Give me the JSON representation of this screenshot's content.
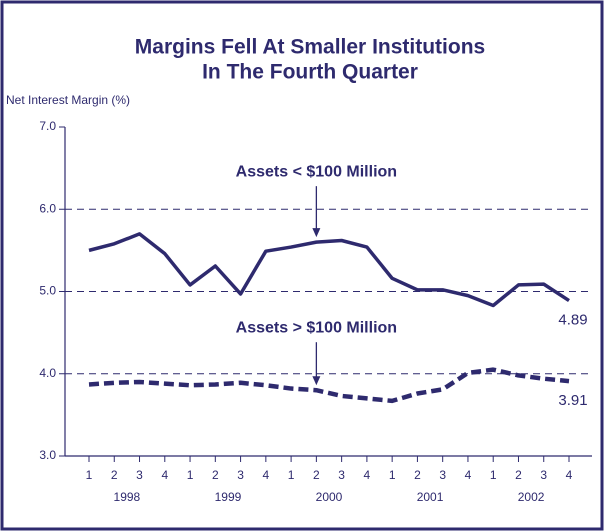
{
  "chart_data": {
    "type": "line",
    "title": [
      "Margins Fell At Smaller Institutions",
      "In The Fourth Quarter"
    ],
    "y_label": "Net Interest Margin (%)",
    "categories": [
      "1",
      "2",
      "3",
      "4",
      "1",
      "2",
      "3",
      "4",
      "1",
      "2",
      "3",
      "4",
      "1",
      "2",
      "3",
      "4",
      "1",
      "2",
      "3",
      "4"
    ],
    "years": [
      "1998",
      "1999",
      "2000",
      "2001",
      "2002"
    ],
    "series": [
      {
        "name": "Assets < $100 Million",
        "color": "#2e2a6e",
        "line_style": "solid",
        "values": [
          5.5,
          5.58,
          5.7,
          5.46,
          5.08,
          5.31,
          4.97,
          5.49,
          5.54,
          5.6,
          5.62,
          5.54,
          5.16,
          5.02,
          5.02,
          4.95,
          4.83,
          5.08,
          5.09,
          4.89
        ]
      },
      {
        "name": "Assets > $100 Million",
        "color": "#2e2a6e",
        "line_style": "dashed",
        "values": [
          3.87,
          3.89,
          3.9,
          3.88,
          3.86,
          3.87,
          3.89,
          3.86,
          3.82,
          3.8,
          3.73,
          3.7,
          3.67,
          3.76,
          3.81,
          4.01,
          4.05,
          3.98,
          3.94,
          3.91
        ]
      }
    ],
    "ylim": [
      3,
      7
    ],
    "yticks": [
      {
        "value": 3,
        "label": "3.0"
      },
      {
        "value": 4,
        "label": "4.0"
      },
      {
        "value": 5,
        "label": "5.0"
      },
      {
        "value": 6,
        "label": "6.0"
      },
      {
        "value": 7,
        "label": "7.0"
      }
    ],
    "grid": true
  }
}
